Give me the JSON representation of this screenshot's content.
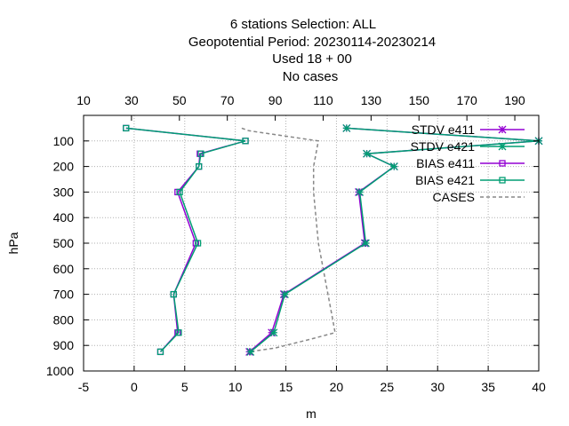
{
  "chart_data": {
    "type": "line",
    "title_lines": [
      "6 stations Selection: ALL",
      "Geopotential  Period: 20230114-20230214",
      "Used  18  + 00",
      "No cases"
    ],
    "xlabel": "m",
    "ylabel": "hPa",
    "xlim": [
      -5,
      40
    ],
    "x_ticks": [
      -5,
      0,
      5,
      10,
      15,
      20,
      25,
      30,
      35,
      40
    ],
    "ylim": [
      1000,
      0
    ],
    "y_ticks": [
      100,
      200,
      300,
      400,
      500,
      600,
      700,
      800,
      900,
      1000
    ],
    "x2lim": [
      10,
      200
    ],
    "x2_ticks": [
      10,
      30,
      50,
      70,
      90,
      110,
      130,
      150,
      170,
      190
    ],
    "grid": true,
    "legend_position": "top-right",
    "series": [
      {
        "name": "STDV e411",
        "color": "#9400d3",
        "style": "solid",
        "marker": "star",
        "axis": "x",
        "points": [
          [
            21,
            50
          ],
          [
            40,
            100
          ],
          [
            23,
            150
          ],
          [
            25.7,
            200
          ],
          [
            22.2,
            300
          ],
          [
            22.8,
            500
          ],
          [
            14.8,
            700
          ],
          [
            13.6,
            850
          ],
          [
            11.4,
            925
          ]
        ]
      },
      {
        "name": "STDV e421",
        "color": "#009e73",
        "style": "solid",
        "marker": "star",
        "axis": "x",
        "points": [
          [
            21,
            50
          ],
          [
            40,
            100
          ],
          [
            23,
            150
          ],
          [
            25.7,
            200
          ],
          [
            22.3,
            300
          ],
          [
            22.9,
            500
          ],
          [
            14.9,
            700
          ],
          [
            13.8,
            850
          ],
          [
            11.5,
            925
          ]
        ]
      },
      {
        "name": "BIAS e411",
        "color": "#9400d3",
        "style": "solid",
        "marker": "square",
        "axis": "x",
        "points": [
          [
            -0.8,
            50
          ],
          [
            11,
            100
          ],
          [
            6.5,
            150
          ],
          [
            6.4,
            200
          ],
          [
            4.3,
            300
          ],
          [
            6.1,
            500
          ],
          [
            3.9,
            700
          ],
          [
            4.3,
            850
          ],
          [
            2.6,
            925
          ]
        ]
      },
      {
        "name": "BIAS e421",
        "color": "#009e73",
        "style": "solid",
        "marker": "square",
        "axis": "x",
        "points": [
          [
            -0.8,
            50
          ],
          [
            11,
            100
          ],
          [
            6.6,
            150
          ],
          [
            6.4,
            200
          ],
          [
            4.5,
            300
          ],
          [
            6.3,
            500
          ],
          [
            3.9,
            700
          ],
          [
            4.4,
            850
          ],
          [
            2.6,
            925
          ]
        ]
      },
      {
        "name": "CASES",
        "color": "#888888",
        "style": "dashed",
        "marker": "none",
        "axis": "x2",
        "points": [
          [
            76,
            50
          ],
          [
            79,
            60
          ],
          [
            108,
            100
          ],
          [
            106,
            200
          ],
          [
            106,
            300
          ],
          [
            107,
            400
          ],
          [
            108,
            500
          ],
          [
            110,
            600
          ],
          [
            112,
            700
          ],
          [
            114,
            800
          ],
          [
            115,
            850
          ],
          [
            105,
            875
          ],
          [
            90,
            910
          ],
          [
            79,
            925
          ]
        ]
      }
    ]
  }
}
